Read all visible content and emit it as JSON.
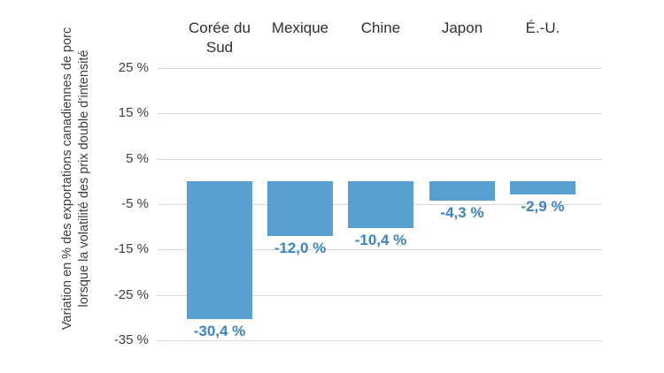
{
  "chart_data": {
    "type": "bar",
    "categories": [
      "Corée du Sud",
      "Mexique",
      "Chine",
      "Japon",
      "É.-U."
    ],
    "values": [
      -30.4,
      -12.0,
      -10.4,
      -4.3,
      -2.9
    ],
    "value_labels": [
      "-30,4 %",
      "-12,0 %",
      "-10,4 %",
      "-4,3 %",
      "-2,9 %"
    ],
    "title": "",
    "xlabel": "",
    "ylabel_line1": "Variation en % des exportations canadiennes de porc",
    "ylabel_line2": "lorsque la volatilité des prix double d’intensité",
    "ylim": [
      -35,
      25
    ],
    "yticks": [
      25,
      15,
      5,
      -5,
      -15,
      -25,
      -35
    ],
    "ytick_labels": [
      "25 %",
      "15 %",
      "5 %",
      "-5 %",
      "-15 %",
      "-25 %",
      "-35 %"
    ],
    "grid": true,
    "legend": false,
    "colors": {
      "bar": "#59a0d2",
      "value_label": "#3b83c4",
      "axis_text": "#3f3f3f",
      "header_text": "#2f2f2f",
      "gridline": "#d9d9d9",
      "background": "#ffffff"
    }
  }
}
